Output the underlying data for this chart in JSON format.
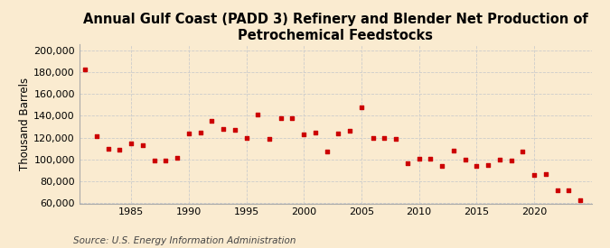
{
  "title": "Annual Gulf Coast (PADD 3) Refinery and Blender Net Production of Petrochemical Feedstocks",
  "ylabel": "Thousand Barrels",
  "source": "Source: U.S. Energy Information Administration",
  "background_color": "#faebd0",
  "marker_color": "#cc0000",
  "years": [
    1981,
    1982,
    1983,
    1984,
    1985,
    1986,
    1987,
    1988,
    1989,
    1990,
    1991,
    1992,
    1993,
    1994,
    1995,
    1996,
    1997,
    1998,
    1999,
    2000,
    2001,
    2002,
    2003,
    2004,
    2005,
    2006,
    2007,
    2008,
    2009,
    2010,
    2011,
    2012,
    2013,
    2014,
    2015,
    2016,
    2017,
    2018,
    2019,
    2020,
    2021,
    2022,
    2023,
    2024
  ],
  "values": [
    182000,
    121000,
    110000,
    109000,
    115000,
    113000,
    99000,
    99000,
    102000,
    124000,
    125000,
    135000,
    128000,
    127000,
    120000,
    141000,
    119000,
    138000,
    138000,
    123000,
    125000,
    107000,
    124000,
    126000,
    148000,
    120000,
    120000,
    119000,
    97000,
    101000,
    101000,
    94000,
    108000,
    100000,
    94000,
    95000,
    100000,
    99000,
    107000,
    86000,
    87000,
    72000,
    72000,
    63000
  ],
  "ylim": [
    60000,
    205000
  ],
  "yticks": [
    60000,
    80000,
    100000,
    120000,
    140000,
    160000,
    180000,
    200000
  ],
  "xlim": [
    1980.5,
    2025
  ],
  "xticks": [
    1985,
    1990,
    1995,
    2000,
    2005,
    2010,
    2015,
    2020
  ],
  "grid_color": "#cccccc",
  "title_fontsize": 10.5,
  "label_fontsize": 8.5,
  "tick_fontsize": 8,
  "source_fontsize": 7.5
}
